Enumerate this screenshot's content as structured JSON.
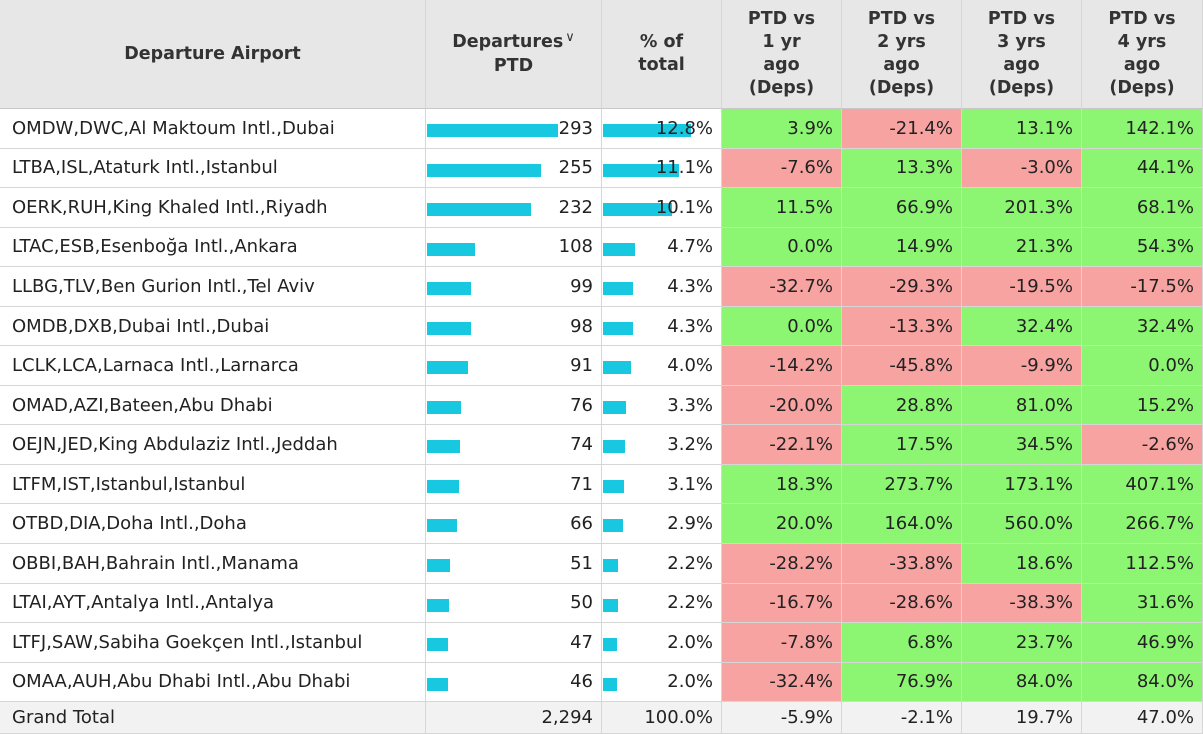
{
  "headers": {
    "airport": "Departure Airport",
    "departures_line1": "Departures",
    "departures_line2": "PTD",
    "sort_icon": "chevron-down-icon",
    "pct_line1": "% of",
    "pct_line2": "total",
    "vs1_lines": [
      "PTD vs",
      "1 yr",
      "ago",
      "(Deps)"
    ],
    "vs2_lines": [
      "PTD vs",
      "2 yrs",
      "ago",
      "(Deps)"
    ],
    "vs3_lines": [
      "PTD vs",
      "3 yrs",
      "ago",
      "(Deps)"
    ],
    "vs4_lines": [
      "PTD vs",
      "4 yrs",
      "ago",
      "(Deps)"
    ]
  },
  "colors": {
    "positive": "#8cf572",
    "negative": "#f7a3a1",
    "bar": "#17c8e0",
    "header": "#e7e7e7"
  },
  "rows": [
    {
      "airport": "OMDW,DWC,Al Maktoum Intl.,Dubai",
      "departures": "293",
      "pct": "12.8%",
      "vs1": "3.9%",
      "vs2": "-21.4%",
      "vs3": "13.1%",
      "vs4": "142.1%"
    },
    {
      "airport": "LTBA,ISL,Ataturk Intl.,Istanbul",
      "departures": "255",
      "pct": "11.1%",
      "vs1": "-7.6%",
      "vs2": "13.3%",
      "vs3": "-3.0%",
      "vs4": "44.1%"
    },
    {
      "airport": "OERK,RUH,King Khaled Intl.,Riyadh",
      "departures": "232",
      "pct": "10.1%",
      "vs1": "11.5%",
      "vs2": "66.9%",
      "vs3": "201.3%",
      "vs4": "68.1%"
    },
    {
      "airport": "LTAC,ESB,Esenboğa Intl.,Ankara",
      "departures": "108",
      "pct": "4.7%",
      "vs1": "0.0%",
      "vs2": "14.9%",
      "vs3": "21.3%",
      "vs4": "54.3%"
    },
    {
      "airport": "LLBG,TLV,Ben Gurion Intl.,Tel Aviv",
      "departures": "99",
      "pct": "4.3%",
      "vs1": "-32.7%",
      "vs2": "-29.3%",
      "vs3": "-19.5%",
      "vs4": "-17.5%"
    },
    {
      "airport": "OMDB,DXB,Dubai Intl.,Dubai",
      "departures": "98",
      "pct": "4.3%",
      "vs1": "0.0%",
      "vs2": "-13.3%",
      "vs3": "32.4%",
      "vs4": "32.4%"
    },
    {
      "airport": "LCLK,LCA,Larnaca Intl.,Larnarca",
      "departures": "91",
      "pct": "4.0%",
      "vs1": "-14.2%",
      "vs2": "-45.8%",
      "vs3": "-9.9%",
      "vs4": "0.0%"
    },
    {
      "airport": "OMAD,AZI,Bateen,Abu Dhabi",
      "departures": "76",
      "pct": "3.3%",
      "vs1": "-20.0%",
      "vs2": "28.8%",
      "vs3": "81.0%",
      "vs4": "15.2%"
    },
    {
      "airport": "OEJN,JED,King Abdulaziz Intl.,Jeddah",
      "departures": "74",
      "pct": "3.2%",
      "vs1": "-22.1%",
      "vs2": "17.5%",
      "vs3": "34.5%",
      "vs4": "-2.6%"
    },
    {
      "airport": "LTFM,IST,Istanbul,Istanbul",
      "departures": "71",
      "pct": "3.1%",
      "vs1": "18.3%",
      "vs2": "273.7%",
      "vs3": "173.1%",
      "vs4": "407.1%"
    },
    {
      "airport": "OTBD,DIA,Doha Intl.,Doha",
      "departures": "66",
      "pct": "2.9%",
      "vs1": "20.0%",
      "vs2": "164.0%",
      "vs3": "560.0%",
      "vs4": "266.7%"
    },
    {
      "airport": "OBBI,BAH,Bahrain Intl.,Manama",
      "departures": "51",
      "pct": "2.2%",
      "vs1": "-28.2%",
      "vs2": "-33.8%",
      "vs3": "18.6%",
      "vs4": "112.5%"
    },
    {
      "airport": "LTAI,AYT,Antalya Intl.,Antalya",
      "departures": "50",
      "pct": "2.2%",
      "vs1": "-16.7%",
      "vs2": "-28.6%",
      "vs3": "-38.3%",
      "vs4": "31.6%"
    },
    {
      "airport": "LTFJ,SAW,Sabiha Goekçen Intl.,Istanbul",
      "departures": "47",
      "pct": "2.0%",
      "vs1": "-7.8%",
      "vs2": "6.8%",
      "vs3": "23.7%",
      "vs4": "46.9%"
    },
    {
      "airport": "OMAA,AUH,Abu Dhabi Intl.,Abu Dhabi",
      "departures": "46",
      "pct": "2.0%",
      "vs1": "-32.4%",
      "vs2": "76.9%",
      "vs3": "84.0%",
      "vs4": "84.0%"
    }
  ],
  "grand_total": {
    "label": "Grand Total",
    "departures": "2,294",
    "pct": "100.0%",
    "vs1": "-5.9%",
    "vs2": "-2.1%",
    "vs3": "19.7%",
    "vs4": "47.0%"
  }
}
